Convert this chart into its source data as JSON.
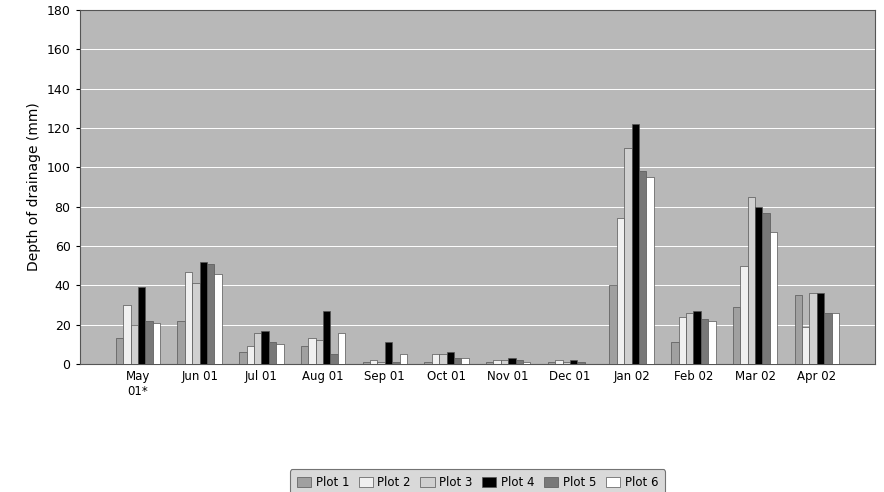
{
  "categories": [
    "May\n01*",
    "Jun 01",
    "Jul 01",
    "Aug 01",
    "Sep 01",
    "Oct 01",
    "Nov 01",
    "Dec 01",
    "Jan 02",
    "Feb 02",
    "Mar 02",
    "Apr 02"
  ],
  "series": {
    "Plot 1": [
      13,
      22,
      6,
      9,
      1,
      1,
      1,
      1,
      40,
      11,
      29,
      35
    ],
    "Plot 2": [
      30,
      47,
      9,
      13,
      2,
      5,
      2,
      2,
      74,
      24,
      50,
      19
    ],
    "Plot 3": [
      20,
      41,
      16,
      12,
      1,
      5,
      2,
      1,
      110,
      26,
      85,
      36
    ],
    "Plot 4": [
      39,
      52,
      17,
      27,
      11,
      6,
      3,
      2,
      122,
      27,
      80,
      36
    ],
    "Plot 5": [
      22,
      51,
      11,
      5,
      1,
      3,
      2,
      1,
      98,
      23,
      77,
      26
    ],
    "Plot 6": [
      21,
      46,
      10,
      16,
      5,
      3,
      1,
      0,
      95,
      22,
      67,
      26
    ]
  },
  "colors": {
    "Plot 1": "#a0a0a0",
    "Plot 2": "#f0f0f0",
    "Plot 3": "#d0d0d0",
    "Plot 4": "#000000",
    "Plot 5": "#787878",
    "Plot 6": "#ffffff"
  },
  "ylabel": "Depth of drainage (mm)",
  "ylim": [
    0,
    180
  ],
  "yticks": [
    0,
    20,
    40,
    60,
    80,
    100,
    120,
    140,
    160,
    180
  ],
  "plot_area_color": "#b8b8b8",
  "figure_bg_color": "#ffffff",
  "legend_box_color": "#d0d0d0",
  "grid_color": "#ffffff",
  "legend_labels": [
    "Plot 1",
    "Plot 2",
    "Plot 3",
    "Plot 4",
    "Plot 5",
    "Plot 6"
  ],
  "bar_width": 0.12
}
